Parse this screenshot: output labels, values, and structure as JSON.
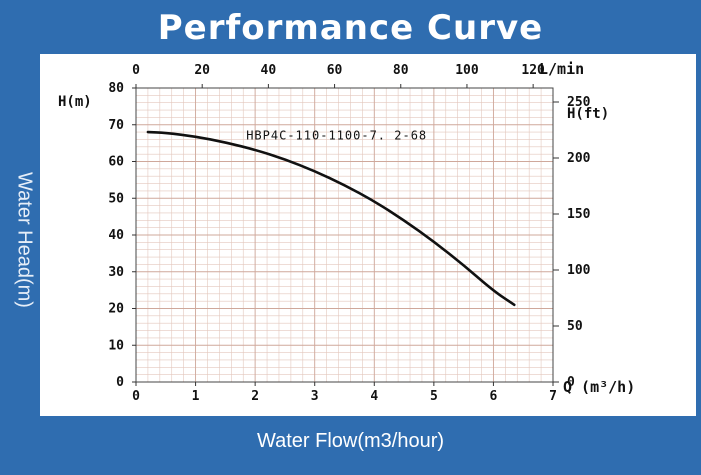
{
  "title": "Performance Curve",
  "y_side_label": "Water Head(m)",
  "x_bottom_label": "Water Flow(m3/hour)",
  "chart_data": {
    "type": "line",
    "series": [
      {
        "name": "HBP4C-110-1100-7.2-68",
        "x": [
          0.2,
          0.5,
          1.0,
          1.5,
          2.0,
          2.5,
          3.0,
          3.5,
          4.0,
          4.5,
          5.0,
          5.5,
          6.0,
          6.35
        ],
        "y": [
          68,
          67.8,
          66.8,
          65.2,
          63.2,
          60.6,
          57.4,
          53.6,
          49.2,
          44.0,
          38.2,
          31.8,
          24.8,
          21
        ]
      }
    ],
    "series_label": "HBP4C-110-1100-7. 2-68",
    "x_axis": {
      "label": "Q  (m³/h)",
      "range": [
        0,
        7
      ],
      "ticks": [
        "0",
        "1",
        "2",
        "3",
        "4",
        "5",
        "6",
        "7"
      ]
    },
    "y_axis": {
      "label": "H(m)",
      "range": [
        0,
        80
      ],
      "ticks": [
        "0",
        "10",
        "20",
        "30",
        "40",
        "50",
        "60",
        "70",
        "80"
      ]
    },
    "top_axis": {
      "label": "L/min",
      "unit_range": [
        0,
        126
      ],
      "ticks": [
        "0",
        "20",
        "40",
        "60",
        "80",
        "100",
        "120"
      ],
      "values": [
        0,
        20,
        40,
        60,
        80,
        100,
        120
      ]
    },
    "right_axis": {
      "label": "H(ft)",
      "unit_range": [
        0,
        262.5
      ],
      "ticks": [
        "0",
        "50",
        "100",
        "150",
        "200",
        "250"
      ],
      "values": [
        0,
        50,
        100,
        150,
        200,
        250
      ]
    },
    "grid": true,
    "grid_color": "#e3c7bd",
    "line_color": "#111111"
  }
}
